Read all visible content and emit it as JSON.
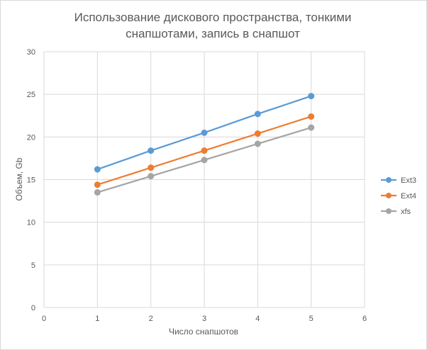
{
  "chart_data": {
    "type": "line",
    "title_lines": [
      "Использование дискового пространства, тонкими",
      "снапшотами, запись в снапшот"
    ],
    "xlabel": "Число снапшотов",
    "ylabel": "Объем, Gb",
    "xlim": [
      0,
      6
    ],
    "ylim": [
      0,
      30
    ],
    "x_ticks": [
      0,
      1,
      2,
      3,
      4,
      5,
      6
    ],
    "y_ticks": [
      0,
      5,
      10,
      15,
      20,
      25,
      30
    ],
    "grid": true,
    "legend_position": "right",
    "x": [
      1,
      2,
      3,
      4,
      5
    ],
    "series": [
      {
        "name": "Ext3",
        "color": "#5b9bd5",
        "values": [
          16.2,
          18.4,
          20.5,
          22.7,
          24.8
        ]
      },
      {
        "name": "Ext4",
        "color": "#ed7d31",
        "values": [
          14.4,
          16.4,
          18.4,
          20.4,
          22.4
        ]
      },
      {
        "name": "xfs",
        "color": "#a5a5a5",
        "values": [
          13.5,
          15.4,
          17.3,
          19.2,
          21.1
        ]
      }
    ]
  }
}
